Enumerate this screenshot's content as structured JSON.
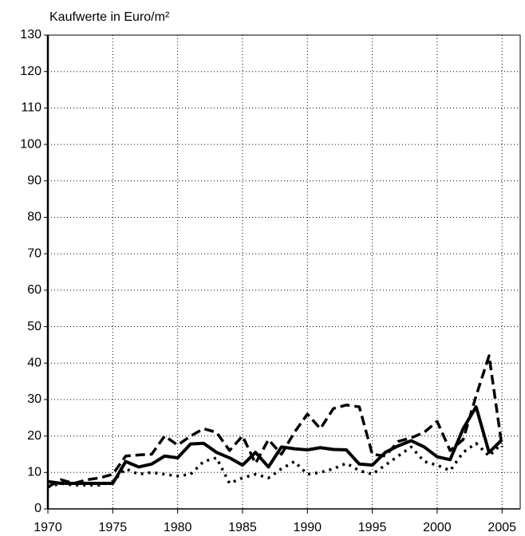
{
  "chart_data": {
    "type": "line",
    "y_label": "Kaufwerte in Euro/m²",
    "x": [
      1970,
      1971,
      1972,
      1973,
      1974,
      1975,
      1976,
      1977,
      1978,
      1979,
      1980,
      1981,
      1982,
      1983,
      1984,
      1985,
      1986,
      1987,
      1988,
      1989,
      1990,
      1991,
      1992,
      1993,
      1994,
      1995,
      1996,
      1997,
      1998,
      1999,
      2000,
      2001,
      2002,
      2003,
      2004,
      2005
    ],
    "series": [
      {
        "color": "#000000",
        "dash": "dashed",
        "width": 3.5,
        "values": [
          6,
          8,
          7,
          8,
          8.5,
          9.5,
          14.5,
          14.8,
          15,
          20,
          17.5,
          20,
          22,
          21,
          16,
          20,
          12.5,
          19,
          15,
          21,
          26,
          22,
          27.5,
          28.5,
          28,
          15,
          14.5,
          18.5,
          19.5,
          21,
          24,
          16,
          19,
          31,
          42,
          17
        ]
      },
      {
        "color": "#000000",
        "dash": "dotted",
        "width": 3.5,
        "values": [
          6,
          7,
          6.5,
          6.5,
          6.5,
          7.5,
          11,
          9.5,
          10,
          9.5,
          9,
          9.5,
          13,
          14,
          7,
          8.5,
          9.5,
          8.5,
          11,
          13,
          9.5,
          10,
          11,
          12.5,
          10.5,
          9.5,
          12,
          14.5,
          17,
          13,
          12,
          10.5,
          15.5,
          18,
          14.5,
          18
        ]
      },
      {
        "color": "#000000",
        "dash": "solid",
        "width": 4,
        "values": [
          7.5,
          7,
          7,
          7,
          7,
          7,
          13,
          11.5,
          12.3,
          14.5,
          14,
          17.8,
          18,
          15.5,
          14,
          12,
          15.5,
          11.5,
          17,
          16.5,
          16.2,
          16.8,
          16.3,
          16.2,
          12.3,
          12,
          15.5,
          17.3,
          18.7,
          17,
          14.3,
          13.5,
          22,
          28,
          15.5,
          19
        ]
      }
    ],
    "xlim": [
      1970,
      2006.4
    ],
    "xticks": [
      1970,
      1975,
      1980,
      1985,
      1990,
      1995,
      2000,
      2005
    ],
    "ylim": [
      0,
      130
    ],
    "yticks": [
      0,
      10,
      20,
      30,
      40,
      50,
      60,
      70,
      80,
      90,
      100,
      110,
      120,
      130
    ],
    "grid": true
  }
}
